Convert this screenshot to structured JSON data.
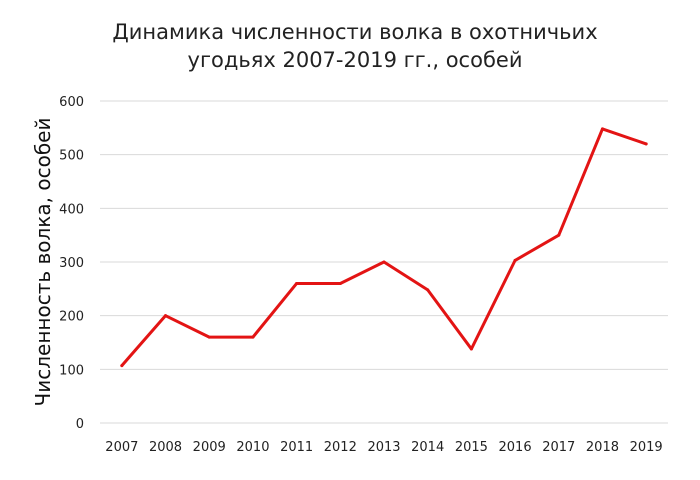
{
  "chart_data": {
    "type": "line",
    "title_lines": [
      "Динамика численности волка в охотничьих",
      "угодьях 2007-2019 гг., особей"
    ],
    "xlabel": "",
    "ylabel": "Численность волка, особей",
    "categories": [
      "2007",
      "2008",
      "2009",
      "2010",
      "2011",
      "2012",
      "2013",
      "2014",
      "2015",
      "2016",
      "2017",
      "2018",
      "2019"
    ],
    "series": [
      {
        "values": [
          107,
          200,
          160,
          160,
          260,
          260,
          300,
          248,
          138,
          303,
          350,
          548,
          520
        ],
        "color": "#e31414"
      }
    ],
    "ylim": [
      0,
      600
    ],
    "yticks": [
      0,
      100,
      200,
      300,
      400,
      500,
      600
    ],
    "grid": true,
    "legend": "none"
  }
}
